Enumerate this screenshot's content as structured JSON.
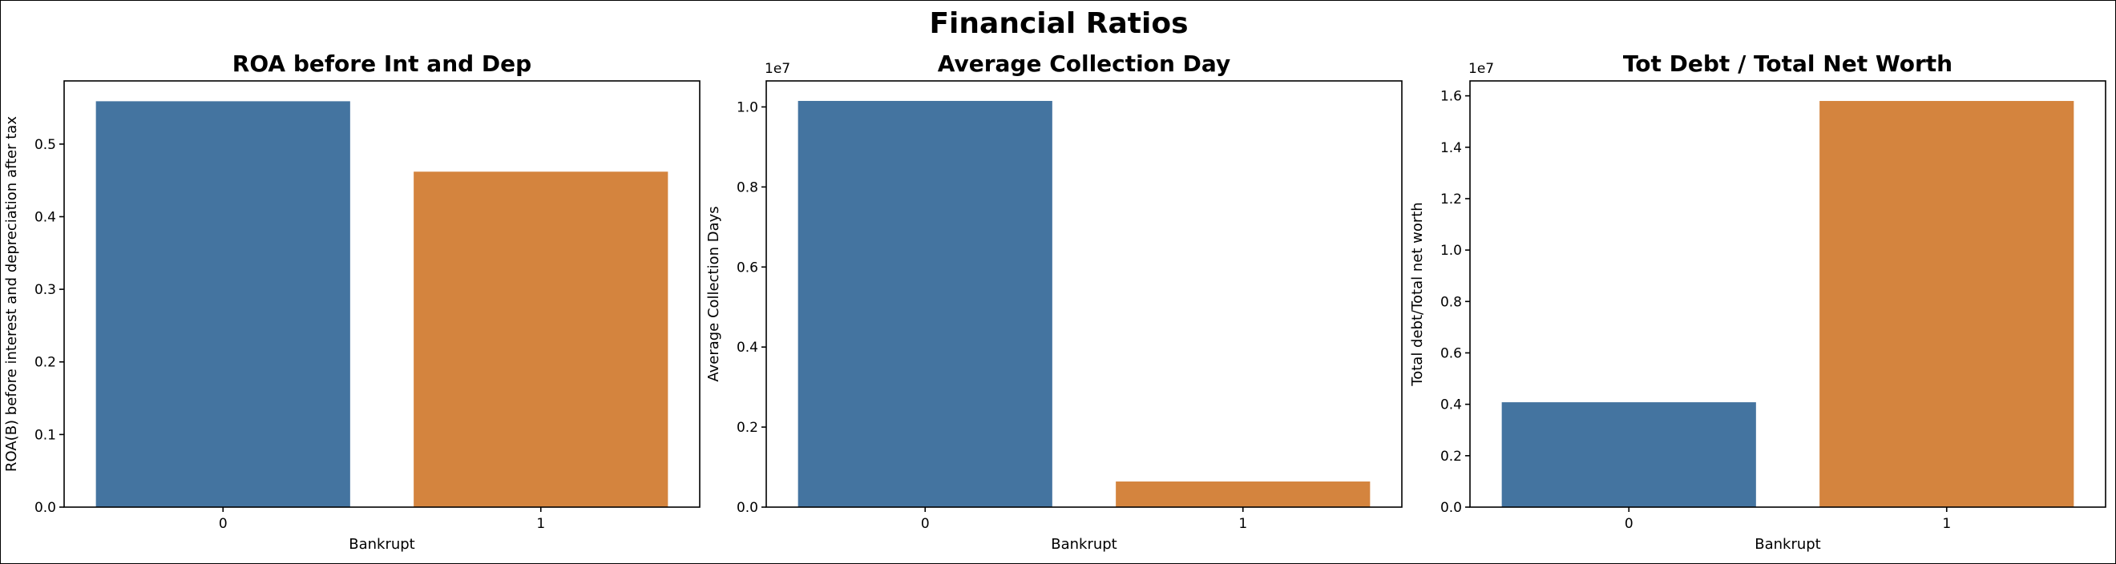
{
  "suptitle": "Financial Ratios",
  "colors": {
    "category_0": "#4474a0",
    "category_1": "#d4843e"
  },
  "chart_data": [
    {
      "type": "bar",
      "title": "ROA before Int and Dep",
      "xlabel": "Bankrupt",
      "ylabel": "ROA(B) before interest and depreciation after tax",
      "categories": [
        "0",
        "1"
      ],
      "values": [
        0.559,
        0.462
      ],
      "ylim": [
        0,
        0.587
      ],
      "yticks": [
        0.0,
        0.1,
        0.2,
        0.3,
        0.4,
        0.5
      ],
      "ytick_labels": [
        "0.0",
        "0.1",
        "0.2",
        "0.3",
        "0.4",
        "0.5"
      ],
      "offset_text": "",
      "grid": false
    },
    {
      "type": "bar",
      "title": "Average Collection Day",
      "xlabel": "Bankrupt",
      "ylabel": "Average Collection Days",
      "categories": [
        "0",
        "1"
      ],
      "values": [
        10150000,
        640000
      ],
      "ylim": [
        0,
        10650000
      ],
      "yticks": [
        0,
        2000000,
        4000000,
        6000000,
        8000000,
        10000000
      ],
      "ytick_labels": [
        "0.0",
        "0.2",
        "0.4",
        "0.6",
        "0.8",
        "1.0"
      ],
      "offset_text": "1e7",
      "grid": false
    },
    {
      "type": "bar",
      "title": "Tot Debt / Total Net Worth",
      "xlabel": "Bankrupt",
      "ylabel": "Total debt/Total net worth",
      "categories": [
        "0",
        "1"
      ],
      "values": [
        4080000,
        15800000
      ],
      "ylim": [
        0,
        16580000
      ],
      "yticks": [
        0,
        2000000,
        4000000,
        6000000,
        8000000,
        10000000,
        12000000,
        14000000,
        16000000
      ],
      "ytick_labels": [
        "0.0",
        "0.2",
        "0.4",
        "0.6",
        "0.8",
        "1.0",
        "1.2",
        "1.4",
        "1.6"
      ],
      "offset_text": "1e7",
      "grid": false
    }
  ]
}
